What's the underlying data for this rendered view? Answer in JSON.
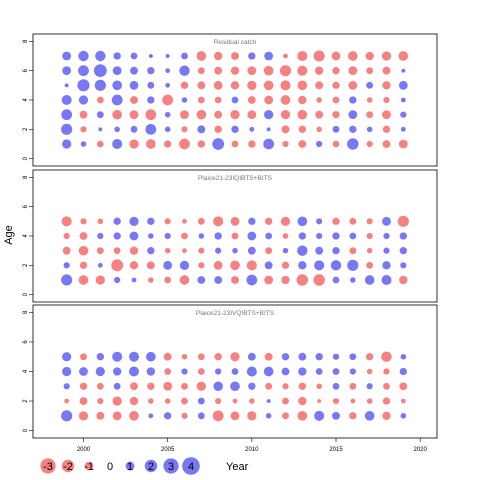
{
  "chart_data": {
    "type": "scatter",
    "ylabel": "Age",
    "xlabel": "Year",
    "xlim": [
      1997,
      2021
    ],
    "x_ticks": [
      2000,
      2005,
      2010,
      2015,
      2020
    ],
    "years": [
      1999,
      2000,
      2001,
      2002,
      2003,
      2004,
      2005,
      2006,
      2007,
      2008,
      2009,
      2010,
      2011,
      2012,
      2013,
      2014,
      2015,
      2016,
      2017,
      2018,
      2019
    ],
    "colors": {
      "positive": "#4b4bf2",
      "negative": "#f25757"
    },
    "legend": {
      "values": [
        -3,
        -2,
        -1,
        0,
        1,
        2,
        3,
        4
      ],
      "labels": [
        "-3",
        "-2",
        "-1",
        "0",
        "1",
        "2",
        "3",
        "4"
      ]
    },
    "panels": [
      {
        "title": "Residual catch",
        "ylim": [
          -0.5,
          8.5
        ],
        "y_ticks": [
          0,
          2,
          4,
          6,
          8
        ],
        "ages": [
          1,
          2,
          3,
          4,
          5,
          6,
          7
        ],
        "residuals": [
          [
            1.1,
            0.4,
            -0.6,
            1.3,
            -1.1,
            -1.2,
            -0.7,
            -1.5,
            -0.7,
            1.8,
            -0.6,
            -0.7,
            1.5,
            -0.5,
            -0.8,
            0.5,
            -0.6,
            1.7,
            -0.5,
            -0.8,
            -1.0
          ],
          [
            1.6,
            -0.5,
            0.2,
            0.4,
            0.6,
            1.5,
            0.4,
            -0.5,
            0.8,
            -0.7,
            0.7,
            0.3,
            0.2,
            -0.8,
            -0.7,
            -0.4,
            0.6,
            0.7,
            0.4,
            -0.7,
            0.3
          ],
          [
            1.5,
            -0.8,
            0.6,
            -1.2,
            -1.0,
            -1.5,
            0.4,
            -1.0,
            -1.2,
            -0.8,
            -1.1,
            -1.0,
            1.1,
            -1.1,
            -1.2,
            -0.8,
            -0.7,
            1.0,
            -0.6,
            -1.0,
            0.5
          ],
          [
            1.3,
            1.1,
            -0.6,
            1.5,
            -0.8,
            0.7,
            -1.5,
            0.4,
            -0.6,
            -0.6,
            0.6,
            -0.8,
            -1.0,
            -1.2,
            -0.9,
            -0.4,
            -0.6,
            0.7,
            -0.4,
            -0.5,
            0.3
          ],
          [
            0.2,
            1.9,
            1.6,
            1.2,
            1.0,
            0.6,
            0.3,
            -0.7,
            -0.8,
            -1.0,
            -0.9,
            -1.1,
            -1.2,
            -1.3,
            -1.2,
            -0.8,
            -0.7,
            -1.0,
            0.6,
            -0.9,
            1.0
          ],
          [
            1.0,
            1.5,
            2.1,
            1.0,
            0.8,
            0.7,
            0.3,
            1.4,
            -0.6,
            -0.8,
            -0.9,
            -1.0,
            -1.2,
            -1.6,
            -1.3,
            -0.9,
            -0.7,
            -1.0,
            -0.6,
            -0.8,
            0.2
          ],
          [
            1.0,
            1.4,
            1.4,
            0.7,
            0.6,
            0.2,
            0.2,
            0.6,
            -1.2,
            -0.9,
            -0.8,
            0.7,
            1.0,
            -0.3,
            -1.3,
            -1.6,
            -1.0,
            -1.2,
            -0.9,
            -1.1,
            -1.2
          ]
        ]
      },
      {
        "title": "Plaice21-23IQIBTS+BITS",
        "ylim": [
          -0.5,
          8.5
        ],
        "y_ticks": [
          0,
          2,
          4,
          6,
          8
        ],
        "ages": [
          1,
          2,
          3,
          4,
          5
        ],
        "residuals": [
          [
            1.6,
            -1.2,
            -1.1,
            0.5,
            0.3,
            -0.4,
            -0.6,
            -1.2,
            0.8,
            0.8,
            -0.8,
            1.5,
            -1.0,
            -0.9,
            -1.7,
            -1.7,
            0.6,
            0.4,
            1.2,
            1.3,
            -0.9
          ],
          [
            0.5,
            -0.7,
            0.3,
            -1.8,
            -0.9,
            -0.8,
            1.0,
            1.1,
            -0.5,
            -1.0,
            -1.2,
            -1.3,
            0.8,
            -0.7,
            0.9,
            1.3,
            1.4,
            1.6,
            -0.6,
            0.9,
            0.5
          ],
          [
            -0.8,
            -1.2,
            -0.6,
            -0.6,
            -0.9,
            0.7,
            -0.4,
            -0.3,
            -0.5,
            0.5,
            0.4,
            0.8,
            -0.6,
            0.4,
            1.4,
            0.8,
            0.7,
            -0.6,
            -0.4,
            0.5,
            0.7
          ],
          [
            -0.5,
            -0.8,
            0.5,
            0.7,
            1.0,
            0.4,
            0.5,
            -0.6,
            0.4,
            0.7,
            -0.6,
            1.0,
            0.6,
            -0.4,
            0.7,
            0.5,
            0.7,
            0.6,
            -0.5,
            0.5,
            0.7
          ],
          [
            -1.3,
            -0.5,
            -0.4,
            0.7,
            1.1,
            0.7,
            -0.5,
            -0.3,
            -0.6,
            -1.3,
            -1.0,
            0.7,
            -0.7,
            -1.1,
            1.2,
            0.5,
            -0.7,
            -0.6,
            -0.5,
            1.0,
            -1.6
          ]
        ]
      },
      {
        "title": "Plaice21-23IVQIBTS+BITS",
        "ylim": [
          -0.5,
          8.5
        ],
        "y_ticks": [
          0,
          2,
          4,
          6,
          8
        ],
        "ages": [
          1,
          2,
          3,
          4,
          5
        ],
        "residuals": [
          [
            1.6,
            -1.1,
            -0.8,
            -1.0,
            -1.2,
            0.3,
            0.7,
            -0.5,
            0.6,
            -1.5,
            -1.0,
            -1.1,
            0.4,
            -0.6,
            -1.2,
            1.3,
            0.8,
            -0.7,
            1.2,
            -0.9,
            0.4
          ],
          [
            -0.3,
            -0.8,
            -0.5,
            -1.1,
            -0.9,
            -0.4,
            -0.4,
            -0.6,
            0.6,
            -0.5,
            -0.3,
            -0.4,
            0.2,
            -0.6,
            -0.9,
            -0.2,
            -0.5,
            -0.3,
            -0.4,
            -0.7,
            -0.3
          ],
          [
            0.5,
            -0.7,
            -0.6,
            0.6,
            -0.8,
            -0.7,
            -1.0,
            -0.6,
            -1.1,
            1.2,
            1.2,
            0.7,
            -0.6,
            -0.5,
            -0.7,
            -0.4,
            0.6,
            -0.6,
            0.5,
            -0.6,
            -0.8
          ],
          [
            1.1,
            1.0,
            1.1,
            0.9,
            1.3,
            0.9,
            -0.6,
            0.5,
            -0.6,
            0.5,
            0.6,
            1.3,
            1.2,
            0.8,
            0.9,
            0.6,
            0.6,
            0.5,
            -0.4,
            -0.5,
            0.7
          ],
          [
            1.1,
            -0.6,
            0.7,
            1.3,
            1.3,
            1.2,
            -0.8,
            -0.4,
            -0.6,
            -0.7,
            -1.1,
            0.8,
            -0.8,
            0.7,
            0.8,
            0.7,
            0.5,
            0.6,
            -0.7,
            -1.4,
            0.4
          ]
        ]
      }
    ]
  }
}
